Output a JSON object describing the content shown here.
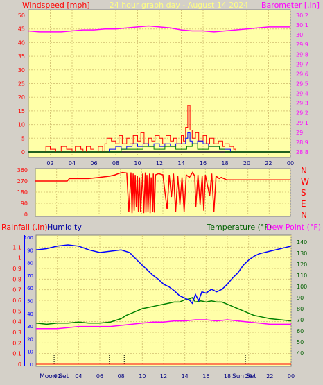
{
  "header": {
    "left_title": "Windspeed [mph]",
    "center_title": "24 hour graph day - August 14 2024",
    "right_title": "Barometer [.in]"
  },
  "colors": {
    "background": "#d4d0c8",
    "plot_bg": "#ffffa8",
    "grid": "#d8c878",
    "red": "#ff0000",
    "blue": "#0000ff",
    "green": "#008000",
    "magenta": "#ff00ff",
    "dark_gray": "#404040",
    "humidity_label": "#0000a0",
    "temp_label": "#006000"
  },
  "time_ticks": [
    "02",
    "04",
    "06",
    "08",
    "10",
    "12",
    "14",
    "16",
    "18",
    "20",
    "22",
    "00"
  ],
  "bottom_ticks": [
    "02",
    "04",
    "06",
    "08",
    "10",
    "12",
    "14",
    "16",
    "18",
    "20",
    "22",
    "00"
  ],
  "moon_set_label": "Moon Set",
  "sun_set_label": "Sun Set",
  "chart_data": [
    {
      "type": "line",
      "name": "wind_and_barometer",
      "left_axis": {
        "label": "Windspeed [mph]",
        "ylim": [
          0,
          50
        ],
        "ticks": [
          0,
          5,
          10,
          15,
          20,
          25,
          30,
          35,
          40,
          45,
          50
        ]
      },
      "right_axis": {
        "label": "Barometer [.in]",
        "ylim": [
          28.8,
          30.3
        ],
        "ticks": [
          "28.8",
          "28.9",
          "29",
          "29.1",
          "29.2",
          "29.3",
          "29.4",
          "29.5",
          "29.6",
          "29.7",
          "29.8",
          "29.9",
          "30",
          "30.1",
          "30.2"
        ]
      },
      "xlim_hours": [
        0,
        24
      ],
      "barometer_series": [
        [
          0,
          30.04
        ],
        [
          1,
          30.03
        ],
        [
          2,
          30.03
        ],
        [
          3,
          30.03
        ],
        [
          4,
          30.04
        ],
        [
          5,
          30.05
        ],
        [
          6,
          30.05
        ],
        [
          7,
          30.06
        ],
        [
          8,
          30.06
        ],
        [
          9,
          30.07
        ],
        [
          10,
          30.08
        ],
        [
          11,
          30.09
        ],
        [
          12,
          30.08
        ],
        [
          13,
          30.07
        ],
        [
          14,
          30.05
        ],
        [
          15,
          30.04
        ],
        [
          16,
          30.04
        ],
        [
          17,
          30.03
        ],
        [
          18,
          30.04
        ],
        [
          19,
          30.05
        ],
        [
          20,
          30.06
        ],
        [
          21,
          30.07
        ],
        [
          22,
          30.08
        ],
        [
          23,
          30.08
        ],
        [
          24,
          30.08
        ]
      ],
      "wind_gust_series": [
        [
          0,
          0
        ],
        [
          1.5,
          0
        ],
        [
          1.6,
          2
        ],
        [
          2,
          1
        ],
        [
          2.5,
          0
        ],
        [
          3,
          2
        ],
        [
          3.5,
          1
        ],
        [
          4,
          0
        ],
        [
          4.3,
          2
        ],
        [
          4.8,
          1
        ],
        [
          5,
          0
        ],
        [
          5.3,
          2
        ],
        [
          5.7,
          1
        ],
        [
          6,
          0
        ],
        [
          6.4,
          2
        ],
        [
          6.8,
          0
        ],
        [
          7,
          3
        ],
        [
          7.2,
          5
        ],
        [
          7.6,
          4
        ],
        [
          8,
          3
        ],
        [
          8.3,
          6
        ],
        [
          8.6,
          3
        ],
        [
          9,
          5
        ],
        [
          9.3,
          3
        ],
        [
          9.6,
          6
        ],
        [
          10,
          4
        ],
        [
          10.3,
          7
        ],
        [
          10.6,
          3
        ],
        [
          11,
          5
        ],
        [
          11.3,
          4
        ],
        [
          11.6,
          6
        ],
        [
          12,
          5
        ],
        [
          12.3,
          3
        ],
        [
          12.6,
          6
        ],
        [
          13,
          4
        ],
        [
          13.3,
          5
        ],
        [
          13.6,
          3
        ],
        [
          14,
          6
        ],
        [
          14.2,
          4
        ],
        [
          14.4,
          9
        ],
        [
          14.6,
          17
        ],
        [
          14.8,
          8
        ],
        [
          15,
          5
        ],
        [
          15.3,
          7
        ],
        [
          15.6,
          4
        ],
        [
          16,
          6
        ],
        [
          16.3,
          3
        ],
        [
          16.6,
          5
        ],
        [
          17,
          3
        ],
        [
          17.4,
          4
        ],
        [
          17.8,
          2
        ],
        [
          18,
          3
        ],
        [
          18.4,
          2
        ],
        [
          18.8,
          1
        ],
        [
          19,
          0
        ],
        [
          24,
          0
        ]
      ],
      "wind_avg_series": [
        [
          0,
          0
        ],
        [
          7,
          0
        ],
        [
          7.4,
          1
        ],
        [
          8,
          2
        ],
        [
          8.5,
          1
        ],
        [
          9,
          2
        ],
        [
          9.5,
          3
        ],
        [
          10,
          2
        ],
        [
          10.5,
          3
        ],
        [
          11,
          2
        ],
        [
          11.5,
          3
        ],
        [
          12,
          2
        ],
        [
          12.5,
          3
        ],
        [
          13,
          2
        ],
        [
          13.5,
          3
        ],
        [
          14,
          3
        ],
        [
          14.4,
          5
        ],
        [
          14.6,
          7
        ],
        [
          14.8,
          4
        ],
        [
          15,
          3
        ],
        [
          15.5,
          4
        ],
        [
          16,
          3
        ],
        [
          16.5,
          2
        ],
        [
          17,
          2
        ],
        [
          17.5,
          1
        ],
        [
          18,
          1
        ],
        [
          18.5,
          0
        ],
        [
          24,
          0
        ]
      ],
      "wind_min_series": [
        [
          0,
          0
        ],
        [
          8,
          0
        ],
        [
          8.5,
          1
        ],
        [
          9.5,
          1
        ],
        [
          10.5,
          2
        ],
        [
          11.5,
          1
        ],
        [
          12.5,
          2
        ],
        [
          13.5,
          1
        ],
        [
          14.5,
          2
        ],
        [
          15,
          3
        ],
        [
          15.5,
          1
        ],
        [
          16.5,
          2
        ],
        [
          17.5,
          1
        ],
        [
          18,
          0
        ],
        [
          24,
          0
        ]
      ]
    },
    {
      "type": "line",
      "name": "wind_direction",
      "axis_labels": [
        "360",
        "270",
        "180",
        "90",
        "0"
      ],
      "compass_labels": [
        "N",
        "W",
        "S",
        "E",
        "N"
      ],
      "ylim": [
        0,
        360
      ],
      "direction_series": [
        [
          0,
          270
        ],
        [
          3,
          270
        ],
        [
          3.2,
          290
        ],
        [
          5,
          290
        ],
        [
          6,
          300
        ],
        [
          7,
          310
        ],
        [
          7.5,
          320
        ],
        [
          7.8,
          330
        ],
        [
          8.2,
          340
        ],
        [
          8.6,
          335
        ],
        [
          8.8,
          20
        ],
        [
          9,
          340
        ],
        [
          9.1,
          10
        ],
        [
          9.2,
          330
        ],
        [
          9.3,
          30
        ],
        [
          9.4,
          320
        ],
        [
          9.5,
          60
        ],
        [
          9.6,
          310
        ],
        [
          9.7,
          20
        ],
        [
          9.8,
          300
        ],
        [
          9.9,
          20
        ],
        [
          10.1,
          330
        ],
        [
          10.2,
          10
        ],
        [
          10.35,
          340
        ],
        [
          10.4,
          15
        ],
        [
          10.5,
          320
        ],
        [
          10.6,
          20
        ],
        [
          10.75,
          330
        ],
        [
          10.8,
          10
        ],
        [
          10.9,
          300
        ],
        [
          11.05,
          20
        ],
        [
          11.1,
          330
        ],
        [
          11.2,
          15
        ],
        [
          11.3,
          320
        ],
        [
          11.6,
          330
        ],
        [
          12,
          320
        ],
        [
          12.4,
          40
        ],
        [
          12.6,
          320
        ],
        [
          12.8,
          140
        ],
        [
          13,
          330
        ],
        [
          13.2,
          20
        ],
        [
          13.4,
          310
        ],
        [
          13.6,
          80
        ],
        [
          13.8,
          300
        ],
        [
          14,
          20
        ],
        [
          14.2,
          320
        ],
        [
          14.5,
          300
        ],
        [
          14.8,
          340
        ],
        [
          15,
          310
        ],
        [
          15.1,
          60
        ],
        [
          15.3,
          320
        ],
        [
          15.5,
          80
        ],
        [
          15.7,
          310
        ],
        [
          15.85,
          30
        ],
        [
          16,
          320
        ],
        [
          16.4,
          150
        ],
        [
          16.6,
          330
        ],
        [
          16.8,
          20
        ],
        [
          17,
          310
        ],
        [
          17.3,
          290
        ],
        [
          17.5,
          300
        ],
        [
          18,
          280
        ],
        [
          24,
          280
        ]
      ]
    },
    {
      "type": "line",
      "name": "rain_humidity_temperature",
      "left_axis": {
        "label": "Rainfall (.in)",
        "ylim": [
          0,
          1.2
        ],
        "ticks": [
          "0",
          "0.1",
          "0.2",
          "0.3",
          "0.4",
          "0.5",
          "0.6",
          "0.7",
          "0.8",
          "0.9",
          "1",
          "1.1"
        ]
      },
      "humidity_axis": {
        "label": "Humidity",
        "ylim": [
          0,
          100
        ],
        "ticks": [
          "0",
          "10",
          "20",
          "30",
          "40",
          "50",
          "60",
          "70",
          "80",
          "90",
          "100"
        ]
      },
      "right_axis": {
        "label": "Temperature (°F)",
        "label2": "Dew Point (°F)",
        "ylim": [
          30,
          145
        ],
        "ticks": [
          "40",
          "50",
          "60",
          "70",
          "80",
          "90",
          "100",
          "110",
          "120",
          "130",
          "140"
        ]
      },
      "humidity_series": [
        [
          0,
          90
        ],
        [
          1,
          91
        ],
        [
          2,
          93
        ],
        [
          3,
          94
        ],
        [
          4,
          93
        ],
        [
          5,
          90
        ],
        [
          6,
          88
        ],
        [
          7,
          89
        ],
        [
          8,
          90
        ],
        [
          8.8,
          88
        ],
        [
          9.5,
          82
        ],
        [
          10,
          78
        ],
        [
          10.5,
          74
        ],
        [
          11,
          70
        ],
        [
          11.5,
          67
        ],
        [
          12,
          63
        ],
        [
          12.5,
          61
        ],
        [
          13,
          58
        ],
        [
          13.5,
          54
        ],
        [
          14,
          52
        ],
        [
          14.5,
          50
        ],
        [
          14.7,
          48
        ],
        [
          15,
          55
        ],
        [
          15.3,
          50
        ],
        [
          15.6,
          57
        ],
        [
          16,
          56
        ],
        [
          16.5,
          59
        ],
        [
          17,
          57
        ],
        [
          17.5,
          59
        ],
        [
          18,
          63
        ],
        [
          18.5,
          68
        ],
        [
          19,
          72
        ],
        [
          19.5,
          78
        ],
        [
          20,
          82
        ],
        [
          20.5,
          85
        ],
        [
          21,
          87
        ],
        [
          22,
          89
        ],
        [
          23,
          91
        ],
        [
          24,
          93
        ]
      ],
      "temperature_series": [
        [
          0,
          67
        ],
        [
          1,
          66
        ],
        [
          2,
          67
        ],
        [
          3,
          67
        ],
        [
          4,
          68
        ],
        [
          5,
          67
        ],
        [
          6,
          67
        ],
        [
          7,
          68
        ],
        [
          8,
          71
        ],
        [
          8.5,
          74
        ],
        [
          9,
          76
        ],
        [
          9.5,
          78
        ],
        [
          10,
          80
        ],
        [
          10.5,
          81
        ],
        [
          11,
          82
        ],
        [
          11.5,
          83
        ],
        [
          12,
          84
        ],
        [
          12.5,
          85
        ],
        [
          13,
          86
        ],
        [
          13.5,
          86
        ],
        [
          14,
          88
        ],
        [
          14.5,
          89
        ],
        [
          14.7,
          90
        ],
        [
          15,
          86
        ],
        [
          15.5,
          87
        ],
        [
          16,
          86
        ],
        [
          16.5,
          87
        ],
        [
          17,
          86
        ],
        [
          17.5,
          86
        ],
        [
          18,
          84
        ],
        [
          18.5,
          82
        ],
        [
          19,
          80
        ],
        [
          19.5,
          78
        ],
        [
          20,
          76
        ],
        [
          20.5,
          74
        ],
        [
          21,
          73
        ],
        [
          22,
          71
        ],
        [
          23,
          70
        ],
        [
          24,
          69
        ]
      ],
      "dewpoint_series": [
        [
          0,
          62
        ],
        [
          1,
          62
        ],
        [
          2,
          62
        ],
        [
          3,
          63
        ],
        [
          4,
          64
        ],
        [
          5,
          64
        ],
        [
          6,
          64
        ],
        [
          7,
          64
        ],
        [
          8,
          65
        ],
        [
          9,
          66
        ],
        [
          10,
          67
        ],
        [
          11,
          68
        ],
        [
          12,
          68
        ],
        [
          13,
          69
        ],
        [
          14,
          69
        ],
        [
          15,
          70
        ],
        [
          16,
          70
        ],
        [
          17,
          69
        ],
        [
          18,
          70
        ],
        [
          19,
          69
        ],
        [
          20,
          68
        ],
        [
          21,
          67
        ],
        [
          22,
          66
        ],
        [
          23,
          66
        ],
        [
          24,
          66
        ]
      ],
      "rainfall_series": [
        [
          0,
          0
        ],
        [
          24,
          0
        ]
      ]
    }
  ]
}
